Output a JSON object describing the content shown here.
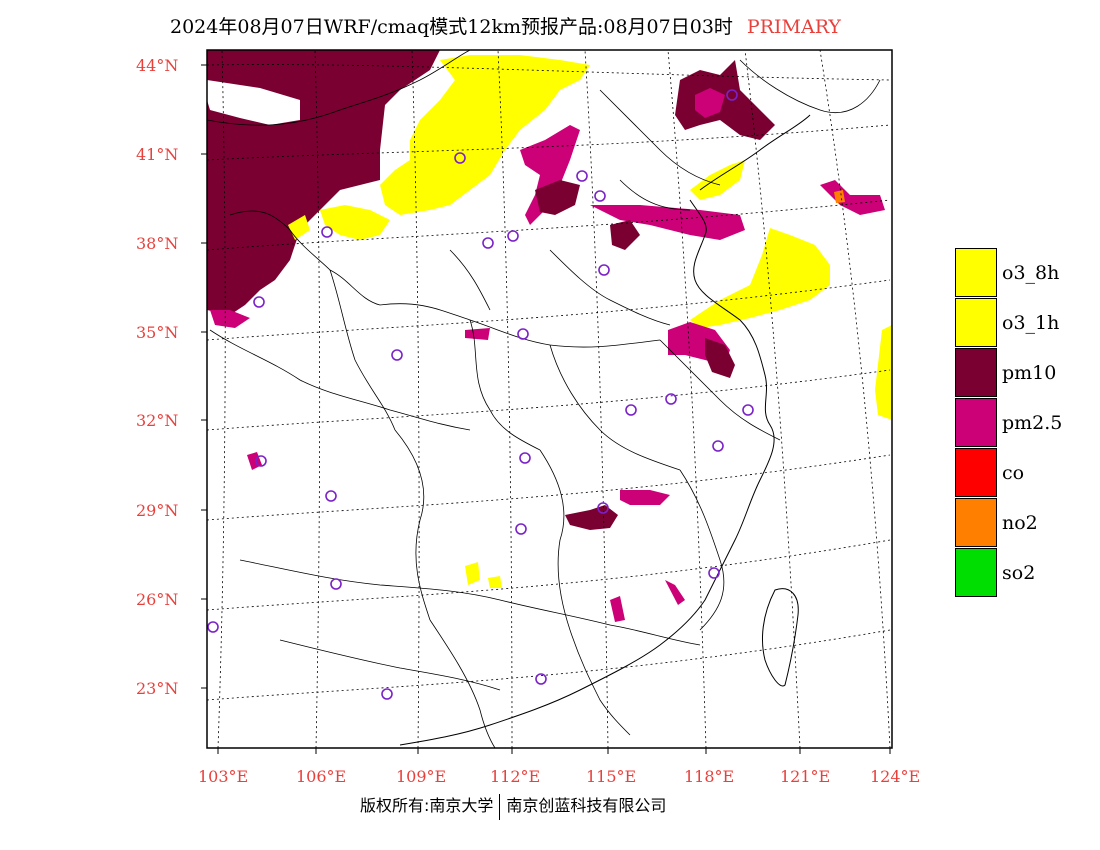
{
  "title": {
    "main": "2024年08月07日WRF/cmaq模式12km预报产品:08月07日03时",
    "tag": "PRIMARY"
  },
  "axes": {
    "lat_labels": [
      "44°N",
      "41°N",
      "38°N",
      "35°N",
      "32°N",
      "29°N",
      "26°N",
      "23°N"
    ],
    "lon_labels": [
      "103°E",
      "106°E",
      "109°E",
      "112°E",
      "115°E",
      "118°E",
      "121°E",
      "124°E"
    ]
  },
  "legend": [
    {
      "label": "o3_8h",
      "color": "#ffff00"
    },
    {
      "label": "o3_1h",
      "color": "#ffff00"
    },
    {
      "label": "pm10",
      "color": "#7a0032"
    },
    {
      "label": "pm2.5",
      "color": "#cc0077"
    },
    {
      "label": "co",
      "color": "#ff0000"
    },
    {
      "label": "no2",
      "color": "#ff7f00"
    },
    {
      "label": "so2",
      "color": "#00dd00"
    }
  ],
  "copyright": {
    "left": "版权所有:南京大学",
    "right": "南京创蓝科技有限公司"
  }
}
